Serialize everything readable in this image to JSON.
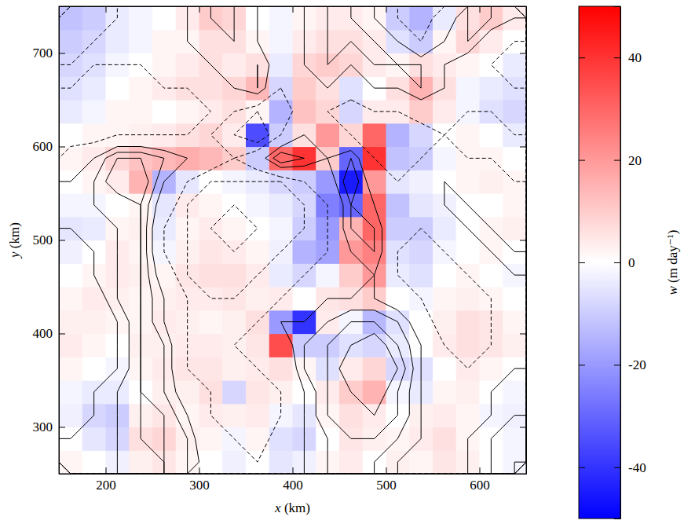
{
  "chart_data": {
    "type": "heatmap",
    "xlabel": "x (km)",
    "ylabel": "y (km)",
    "xlim": [
      150,
      650
    ],
    "ylim": [
      250,
      750
    ],
    "xticks": [
      200,
      300,
      400,
      500,
      600
    ],
    "yticks": [
      300,
      400,
      500,
      600,
      700
    ],
    "x": [
      162.5,
      187.5,
      212.5,
      237.5,
      262.5,
      287.5,
      312.5,
      337.5,
      362.5,
      387.5,
      412.5,
      437.5,
      462.5,
      487.5,
      512.5,
      537.5,
      562.5,
      587.5,
      612.5,
      637.5
    ],
    "y": [
      262.5,
      287.5,
      312.5,
      337.5,
      362.5,
      387.5,
      412.5,
      437.5,
      462.5,
      487.5,
      512.5,
      537.5,
      562.5,
      587.5,
      612.5,
      637.5,
      662.5,
      687.5,
      712.5,
      737.5
    ],
    "cells": [
      [
        2,
        0,
        -3,
        3,
        5,
        2,
        0,
        -3,
        0,
        -5,
        -3,
        2,
        4,
        0,
        3,
        2,
        5,
        3,
        0,
        -2
      ],
      [
        0,
        -5,
        -8,
        6,
        8,
        3,
        2,
        -2,
        2,
        -6,
        -8,
        0,
        5,
        3,
        2,
        4,
        6,
        2,
        0,
        -2
      ],
      [
        -3,
        -8,
        -10,
        3,
        5,
        2,
        4,
        3,
        4,
        -2,
        -5,
        2,
        6,
        4,
        0,
        3,
        4,
        2,
        -2,
        -3
      ],
      [
        -2,
        -4,
        -4,
        0,
        3,
        3,
        6,
        -8,
        5,
        3,
        0,
        4,
        10,
        15,
        -2,
        -4,
        2,
        3,
        0,
        -2
      ],
      [
        2,
        0,
        -2,
        2,
        4,
        5,
        5,
        3,
        4,
        6,
        2,
        -6,
        4,
        8,
        -8,
        -6,
        0,
        4,
        2,
        0
      ],
      [
        4,
        2,
        0,
        3,
        3,
        4,
        4,
        3,
        5,
        35,
        -10,
        -10,
        -6,
        -8,
        -4,
        0,
        4,
        6,
        5,
        3
      ],
      [
        3,
        3,
        2,
        2,
        4,
        3,
        2,
        3,
        6,
        -20,
        -40,
        4,
        -2,
        -14,
        -6,
        0,
        3,
        6,
        5,
        2
      ],
      [
        2,
        4,
        3,
        2,
        3,
        4,
        4,
        5,
        3,
        4,
        0,
        5,
        6,
        10,
        0,
        -2,
        2,
        3,
        2,
        0
      ],
      [
        0,
        2,
        4,
        3,
        2,
        5,
        6,
        6,
        4,
        -4,
        -8,
        -2,
        10,
        20,
        -4,
        -6,
        0,
        2,
        0,
        -2
      ],
      [
        -3,
        0,
        4,
        2,
        -2,
        3,
        5,
        4,
        2,
        -3,
        -15,
        -18,
        20,
        25,
        -6,
        -8,
        -2,
        0,
        2,
        0
      ],
      [
        -5,
        -4,
        2,
        3,
        -4,
        2,
        4,
        2,
        0,
        -2,
        -10,
        -20,
        15,
        30,
        -10,
        -10,
        -4,
        0,
        2,
        3
      ],
      [
        -2,
        -2,
        0,
        2,
        -5,
        4,
        2,
        0,
        -2,
        -4,
        -8,
        -25,
        -30,
        30,
        -12,
        -5,
        -3,
        0,
        0,
        2
      ],
      [
        0,
        2,
        4,
        15,
        -15,
        -5,
        0,
        -2,
        -4,
        -8,
        -10,
        -20,
        -45,
        20,
        -5,
        -3,
        0,
        2,
        3,
        2
      ],
      [
        2,
        4,
        8,
        12,
        14,
        16,
        14,
        10,
        -10,
        30,
        40,
        10,
        -30,
        40,
        -12,
        -10,
        -2,
        2,
        2,
        0
      ],
      [
        0,
        2,
        2,
        3,
        4,
        6,
        8,
        4,
        -35,
        -10,
        6,
        20,
        8,
        30,
        -15,
        -8,
        0,
        2,
        0,
        -4
      ],
      [
        -4,
        -2,
        2,
        2,
        0,
        2,
        4,
        6,
        2,
        -15,
        12,
        8,
        -8,
        4,
        4,
        10,
        4,
        -2,
        -6,
        -8
      ],
      [
        -6,
        -4,
        0,
        2,
        4,
        6,
        6,
        8,
        14,
        -8,
        10,
        6,
        -6,
        0,
        6,
        15,
        6,
        -2,
        -4,
        -6
      ],
      [
        -8,
        -6,
        -2,
        0,
        2,
        4,
        6,
        4,
        6,
        -4,
        8,
        10,
        8,
        4,
        2,
        6,
        4,
        2,
        0,
        -4
      ],
      [
        -10,
        -8,
        -4,
        -2,
        2,
        2,
        6,
        6,
        2,
        -2,
        4,
        6,
        6,
        4,
        -6,
        -10,
        2,
        8,
        4,
        0
      ],
      [
        -12,
        -10,
        -4,
        -2,
        0,
        4,
        10,
        8,
        0,
        -2,
        2,
        4,
        4,
        2,
        -10,
        -15,
        -4,
        6,
        10,
        4
      ]
    ],
    "colorbar": {
      "label": "w (m day⁻¹)",
      "range": [
        -50,
        50
      ],
      "ticks": [
        -40,
        -20,
        0,
        20,
        40
      ]
    },
    "contours": {
      "levels": [
        -4,
        -3,
        -2,
        -1,
        1,
        2,
        3,
        4
      ],
      "field": [
        [
          1,
          1,
          2,
          2,
          3,
          2,
          0,
          -1,
          -1,
          0,
          1,
          2,
          2,
          2,
          1,
          0,
          0,
          1,
          2,
          3
        ],
        [
          1,
          1,
          2,
          3,
          3,
          2,
          -1,
          -1,
          -2,
          0,
          1,
          2,
          3,
          3,
          2,
          1,
          0,
          1,
          2,
          2
        ],
        [
          0,
          1,
          2,
          3,
          3,
          1,
          -1,
          -2,
          -2,
          -1,
          1,
          3,
          3,
          4,
          3,
          1,
          0,
          0,
          1,
          2
        ],
        [
          0,
          1,
          2,
          3,
          2,
          0,
          -1,
          -2,
          -2,
          -1,
          1,
          3,
          4,
          5,
          3,
          1,
          -1,
          0,
          1,
          1
        ],
        [
          -1,
          0,
          1,
          3,
          2,
          -1,
          -2,
          -2,
          -1,
          -1,
          2,
          3,
          5,
          5,
          4,
          1,
          -1,
          -1,
          0,
          1
        ],
        [
          -1,
          0,
          1,
          3,
          2,
          -1,
          -2,
          -1,
          -1,
          0,
          2,
          3,
          4,
          5,
          3,
          1,
          -1,
          -2,
          -1,
          0
        ],
        [
          -1,
          0,
          1,
          3,
          1,
          -1,
          -2,
          -2,
          -1,
          1,
          1,
          2,
          3,
          3,
          2,
          0,
          -2,
          -2,
          -1,
          0
        ],
        [
          -1,
          0,
          2,
          3,
          1,
          -1,
          -2,
          -2,
          -2,
          -1,
          0,
          1,
          1,
          1,
          0,
          -1,
          -2,
          -2,
          -1,
          0
        ],
        [
          0,
          1,
          2,
          3,
          0,
          -2,
          -3,
          -3,
          -2,
          -2,
          -1,
          0,
          0,
          1,
          -1,
          -2,
          -2,
          -1,
          0,
          1
        ],
        [
          0,
          1,
          2,
          3,
          -1,
          -2,
          -3,
          -3,
          -3,
          -2,
          -2,
          -1,
          1,
          2,
          -1,
          -2,
          -1,
          0,
          1,
          1
        ],
        [
          1,
          1,
          2,
          3,
          -1,
          -2,
          -3,
          -4,
          -3,
          -3,
          -2,
          -1,
          2,
          2,
          -1,
          -1,
          0,
          1,
          1,
          0
        ],
        [
          1,
          2,
          2,
          3,
          0,
          -2,
          -3,
          -3,
          -3,
          -3,
          -2,
          -1,
          2,
          1,
          -1,
          0,
          1,
          1,
          0,
          -1
        ],
        [
          1,
          2,
          4,
          4,
          1,
          -1,
          -2,
          -2,
          -2,
          -2,
          -1,
          0,
          3,
          0,
          -1,
          0,
          1,
          0,
          -1,
          -1
        ],
        [
          0,
          1,
          3,
          3,
          2,
          1,
          0,
          -1,
          0,
          3,
          2,
          1,
          2,
          -1,
          -2,
          -1,
          0,
          -1,
          -1,
          -2
        ],
        [
          -2,
          -2,
          -1,
          -1,
          -1,
          -1,
          -1,
          -2,
          -3,
          -1,
          1,
          0,
          -1,
          -2,
          -2,
          -2,
          -1,
          -2,
          -2,
          -1
        ],
        [
          -2,
          -2,
          -2,
          -2,
          -2,
          -2,
          -1,
          -1,
          -2,
          -2,
          0,
          -1,
          -2,
          -1,
          -1,
          0,
          0,
          -1,
          -1,
          0
        ],
        [
          -1,
          -2,
          -2,
          -2,
          -1,
          -1,
          0,
          1,
          2,
          -1,
          0,
          1,
          0,
          1,
          1,
          2,
          1,
          0,
          -1,
          -1
        ],
        [
          -1,
          -1,
          -1,
          -1,
          0,
          0,
          1,
          1,
          2,
          0,
          1,
          2,
          1,
          2,
          2,
          2,
          1,
          0,
          -1,
          -2
        ],
        [
          -2,
          -1,
          -1,
          0,
          0,
          1,
          1,
          2,
          1,
          0,
          1,
          2,
          2,
          2,
          1,
          -1,
          1,
          2,
          0,
          -1
        ],
        [
          -2,
          -2,
          -1,
          0,
          0,
          1,
          2,
          2,
          1,
          0,
          1,
          2,
          2,
          1,
          -1,
          -2,
          0,
          2,
          2,
          1
        ]
      ]
    }
  }
}
